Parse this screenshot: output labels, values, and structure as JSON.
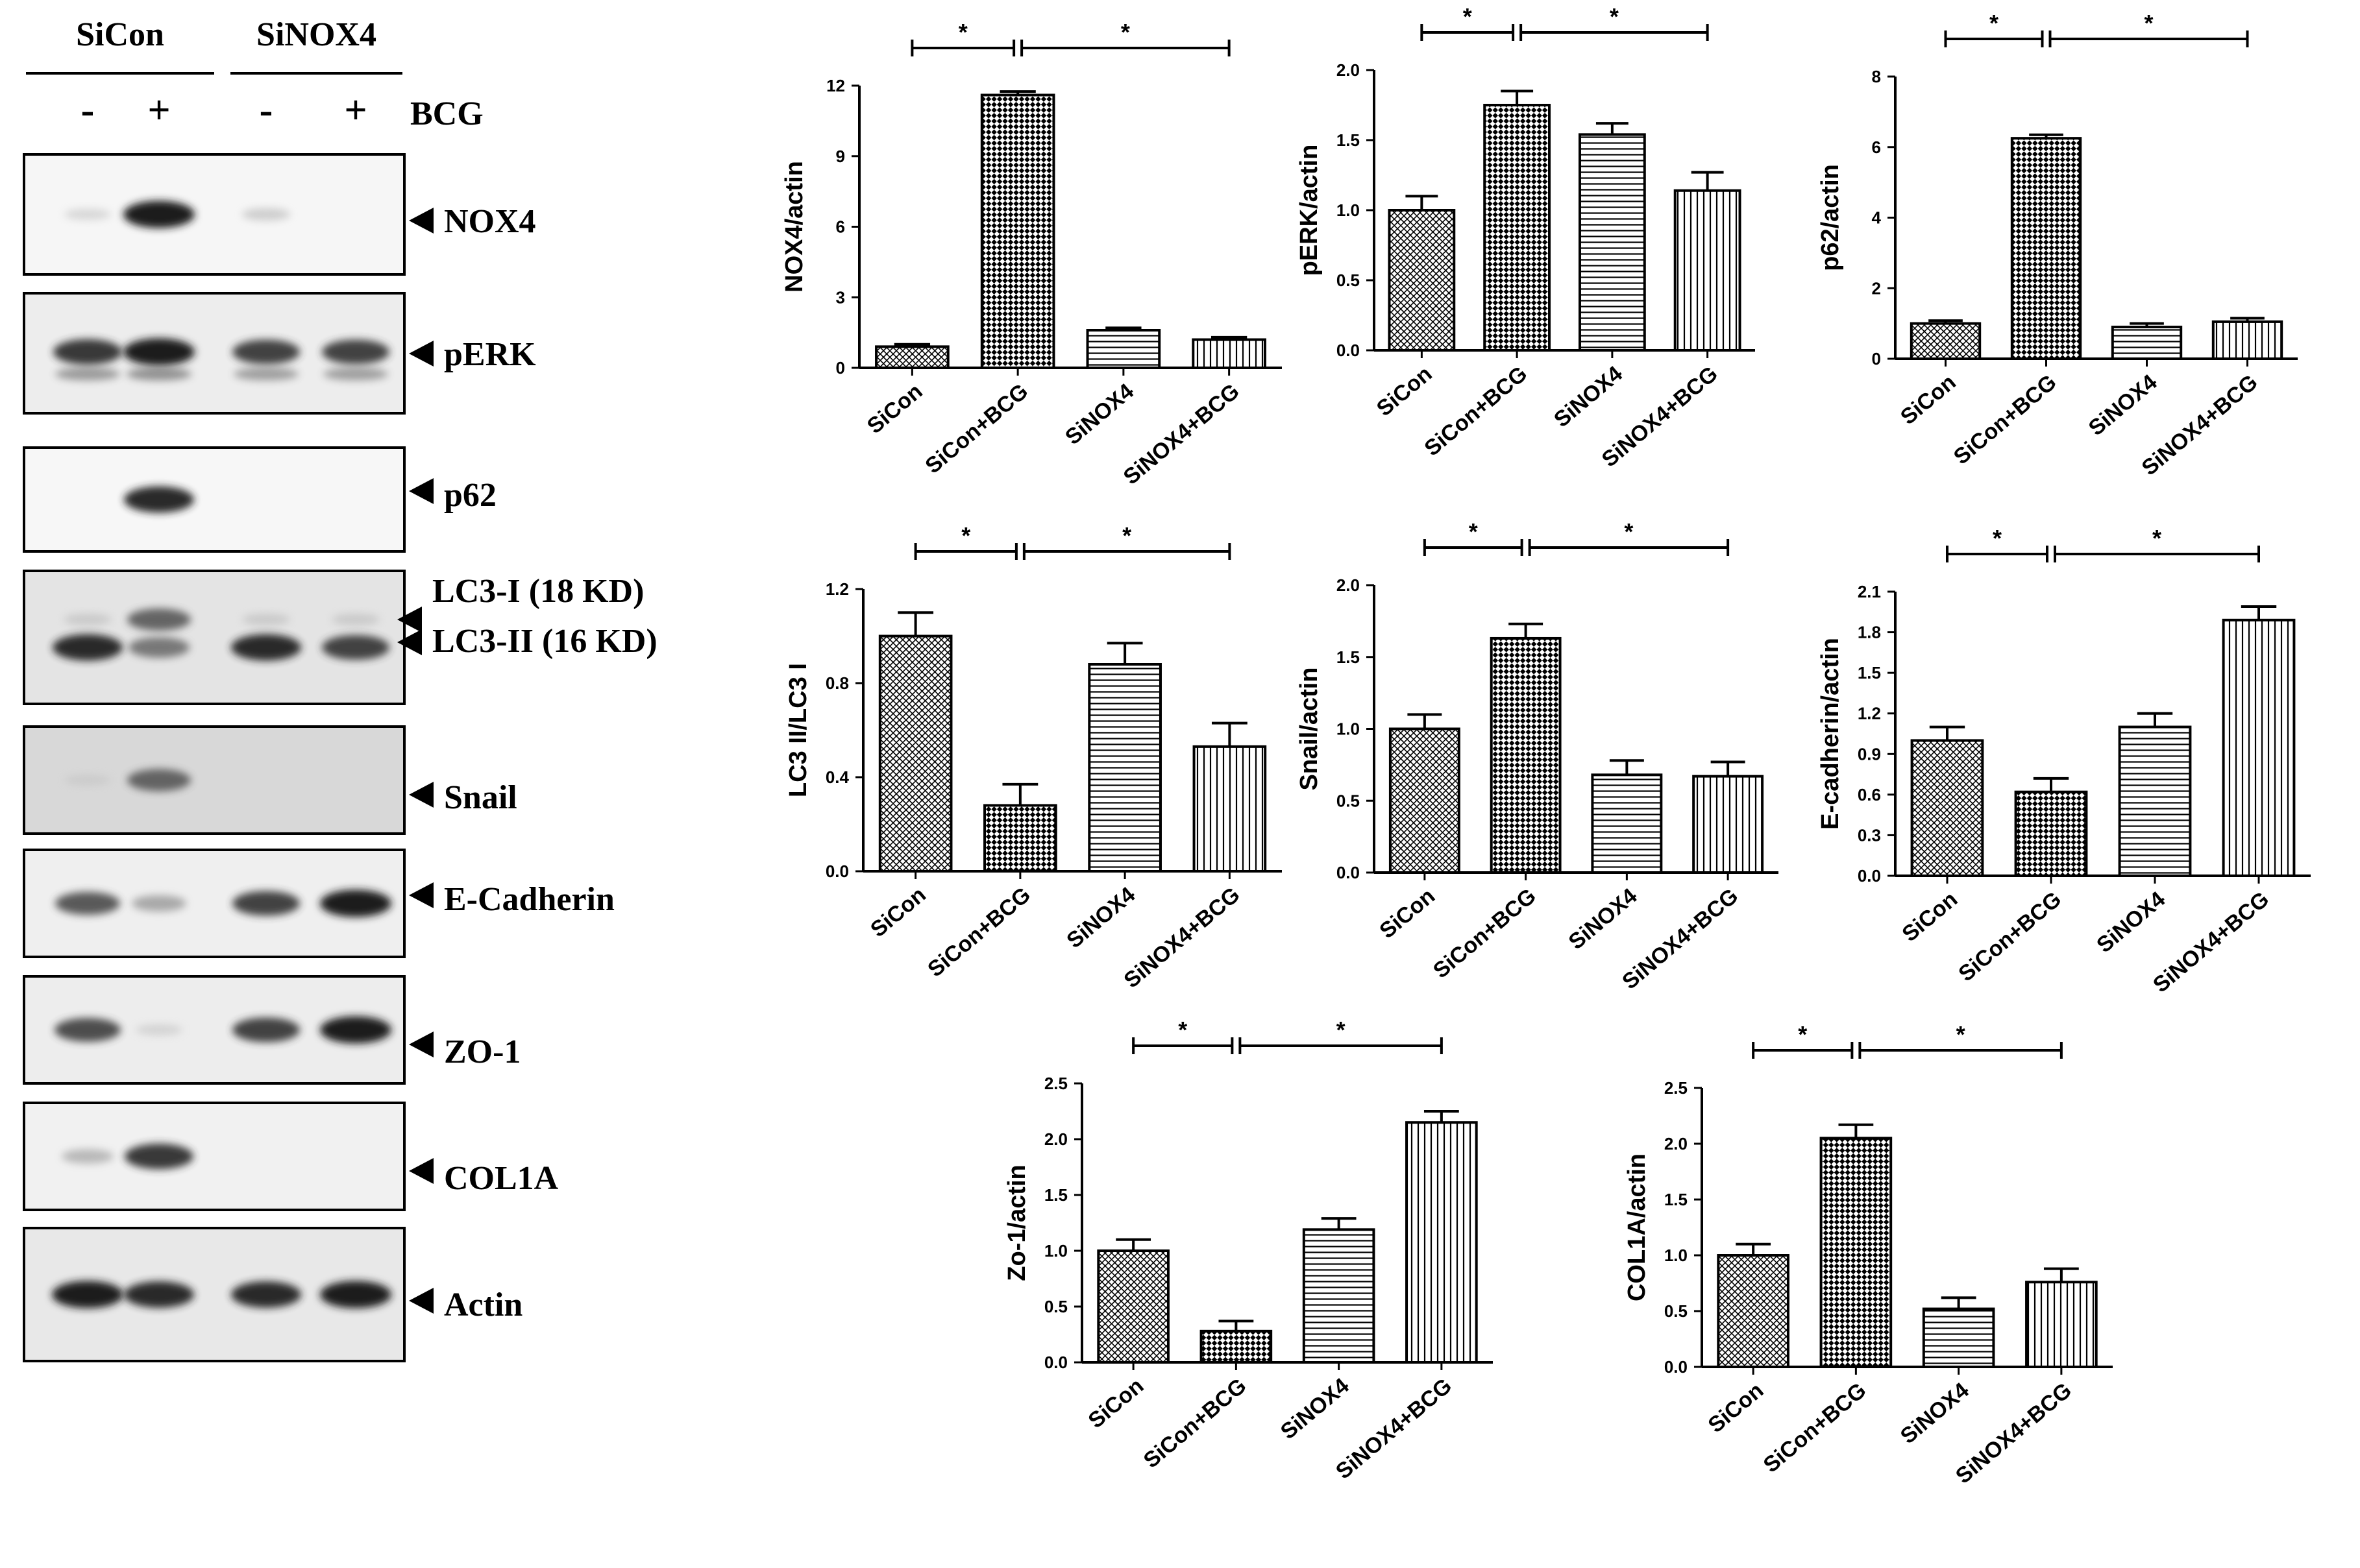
{
  "western_blot": {
    "groups": [
      {
        "label": "SiCon"
      },
      {
        "label": "SiNOX4"
      }
    ],
    "treatment_label": "BCG",
    "lane_signs": [
      "-",
      "+",
      "-",
      "+"
    ],
    "bands": [
      {
        "label": "NOX4",
        "intensity": [
          0.05,
          1.0,
          0.12,
          0.03
        ]
      },
      {
        "label": "pERK",
        "intensity": [
          0.9,
          1.0,
          0.85,
          0.85
        ]
      },
      {
        "label": "p62",
        "intensity": [
          0.02,
          0.95,
          0.02,
          0.02
        ]
      },
      {
        "label": "LC3-I (18 KD)",
        "intensity": [
          0.1,
          0.7,
          0.1,
          0.1
        ]
      },
      {
        "label": "LC3-II (16 KD)",
        "intensity": [
          0.95,
          0.6,
          0.95,
          0.85
        ]
      },
      {
        "label": "Snail",
        "intensity": [
          0.05,
          0.7,
          0.02,
          0.02
        ]
      },
      {
        "label": "E-Cadherin",
        "intensity": [
          0.75,
          0.35,
          0.85,
          1.0
        ]
      },
      {
        "label": "ZO-1",
        "intensity": [
          0.8,
          0.05,
          0.85,
          1.0
        ]
      },
      {
        "label": "COL1A",
        "intensity": [
          0.25,
          0.9,
          0.03,
          0.03
        ]
      },
      {
        "label": "Actin",
        "intensity": [
          1.0,
          0.95,
          0.95,
          1.0
        ]
      }
    ]
  },
  "chart_data": [
    {
      "type": "bar",
      "categories": [
        "SiCon",
        "SiCon+BCG",
        "SiNOX4",
        "SiNOX4+BCG"
      ],
      "values": [
        0.9,
        11.6,
        1.6,
        1.2
      ],
      "errors": [
        0.1,
        0.15,
        0.1,
        0.1
      ],
      "ylabel": "NOX4/actin",
      "ylim": [
        0,
        12
      ],
      "yticks": [
        "0",
        "3",
        "6",
        "9",
        "12"
      ],
      "significance": [
        "*",
        "*"
      ]
    },
    {
      "type": "bar",
      "categories": [
        "SiCon",
        "SiCon+BCG",
        "SiNOX4",
        "SiNOX4+BCG"
      ],
      "values": [
        1.0,
        1.75,
        1.54,
        1.14
      ],
      "errors": [
        0.1,
        0.1,
        0.08,
        0.13
      ],
      "ylabel": "pERK/actin",
      "ylim": [
        0,
        2.0
      ],
      "yticks": [
        "0.0",
        "0.5",
        "1.0",
        "1.5",
        "2.0"
      ],
      "significance": [
        "*",
        "*"
      ]
    },
    {
      "type": "bar",
      "categories": [
        "SiCon",
        "SiCon+BCG",
        "SiNOX4",
        "SiNOX4+BCG"
      ],
      "values": [
        1.0,
        6.25,
        0.9,
        1.05
      ],
      "errors": [
        0.08,
        0.1,
        0.1,
        0.1
      ],
      "ylabel": "p62/actin",
      "ylim": [
        0,
        8
      ],
      "yticks": [
        "0",
        "2",
        "4",
        "6",
        "8"
      ],
      "significance": [
        "*",
        "*"
      ]
    },
    {
      "type": "bar",
      "categories": [
        "SiCon",
        "SiCon+BCG",
        "SiNOX4",
        "SiNOX4+BCG"
      ],
      "values": [
        1.0,
        0.28,
        0.88,
        0.53
      ],
      "errors": [
        0.1,
        0.09,
        0.09,
        0.1
      ],
      "ylabel": "LC3 II/LC3 I",
      "ylim": [
        0,
        1.2
      ],
      "yticks": [
        "0.0",
        "0.4",
        "0.8",
        "1.2"
      ],
      "significance": [
        "*",
        "*"
      ]
    },
    {
      "type": "bar",
      "categories": [
        "SiCon",
        "SiCon+BCG",
        "SiNOX4",
        "SiNOX4+BCG"
      ],
      "values": [
        1.0,
        1.63,
        0.68,
        0.67
      ],
      "errors": [
        0.1,
        0.1,
        0.1,
        0.1
      ],
      "ylabel": "Snail/actin",
      "ylim": [
        0,
        2.0
      ],
      "yticks": [
        "0.0",
        "0.5",
        "1.0",
        "1.5",
        "2.0"
      ],
      "significance": [
        "*",
        "*"
      ]
    },
    {
      "type": "bar",
      "categories": [
        "SiCon",
        "SiCon+BCG",
        "SiNOX4",
        "SiNOX4+BCG"
      ],
      "values": [
        1.0,
        0.62,
        1.1,
        1.89
      ],
      "errors": [
        0.1,
        0.1,
        0.1,
        0.1
      ],
      "ylabel": "E-cadherin/actin",
      "ylim": [
        0,
        2.1
      ],
      "yticks": [
        "0.0",
        "0.3",
        "0.6",
        "0.9",
        "1.2",
        "1.5",
        "1.8",
        "2.1"
      ],
      "significance": [
        "*",
        "*"
      ]
    },
    {
      "type": "bar",
      "categories": [
        "SiCon",
        "SiCon+BCG",
        "SiNOX4",
        "SiNOX4+BCG"
      ],
      "values": [
        1.0,
        0.28,
        1.19,
        2.15
      ],
      "errors": [
        0.1,
        0.09,
        0.1,
        0.1
      ],
      "ylabel": "Zo-1/actin",
      "ylim": [
        0,
        2.5
      ],
      "yticks": [
        "0.0",
        "0.5",
        "1.0",
        "1.5",
        "2.0",
        "2.5"
      ],
      "significance": [
        "*",
        "*"
      ]
    },
    {
      "type": "bar",
      "categories": [
        "SiCon",
        "SiCon+BCG",
        "SiNOX4",
        "SiNOX4+BCG"
      ],
      "values": [
        1.0,
        2.05,
        0.52,
        0.76
      ],
      "errors": [
        0.1,
        0.12,
        0.1,
        0.12
      ],
      "ylabel": "COL1A/actin",
      "ylim": [
        0,
        2.5
      ],
      "yticks": [
        "0.0",
        "0.5",
        "1.0",
        "1.5",
        "2.0",
        "2.5"
      ],
      "significance": [
        "*",
        "*"
      ]
    }
  ],
  "colors": {
    "ink": "#000000",
    "bar_fill": "#ffffff"
  }
}
